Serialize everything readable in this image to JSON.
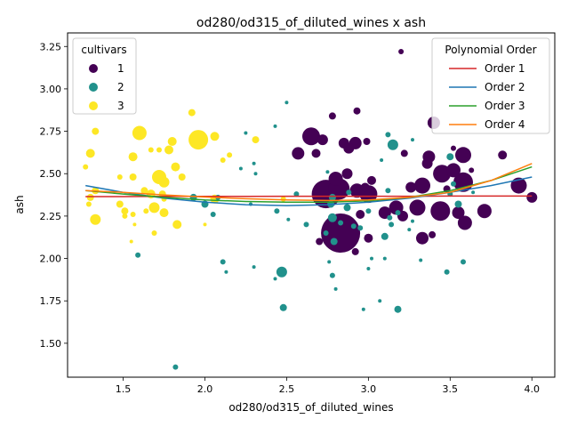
{
  "chart_data": {
    "type": "scatter",
    "title": "od280/od315_of_diluted_wines x ash",
    "xlabel": "od280/od315_of_diluted_wines",
    "ylabel": "ash",
    "xlim": [
      1.16,
      4.14
    ],
    "ylim": [
      1.3,
      3.33
    ],
    "xticks": [
      "1.5",
      "2.0",
      "2.5",
      "3.0",
      "3.5",
      "4.0"
    ],
    "yticks": [
      "1.50",
      "1.75",
      "2.00",
      "2.25",
      "2.50",
      "2.75",
      "3.00",
      "3.25"
    ],
    "grid": false,
    "legend_cultivars": {
      "title": "cultivars",
      "placement": "top-left",
      "entries": [
        {
          "label": "1",
          "color": "#440154"
        },
        {
          "label": "2",
          "color": "#21918c"
        },
        {
          "label": "3",
          "color": "#fde725"
        }
      ]
    },
    "legend_poly": {
      "title": "Polynomial Order",
      "placement": "top-right",
      "entries": [
        {
          "label": "Order 1",
          "color": "#d62728"
        },
        {
          "label": "Order 2",
          "color": "#1f77b4"
        },
        {
          "label": "Order 3",
          "color": "#2ca02c"
        },
        {
          "label": "Order 4",
          "color": "#ff7f0e"
        }
      ]
    },
    "series": [
      {
        "name": "1",
        "color": "#440154",
        "points": [
          [
            3.2,
            3.22,
            3
          ],
          [
            2.93,
            2.87,
            4
          ],
          [
            2.78,
            2.84,
            4
          ],
          [
            3.4,
            2.8,
            7
          ],
          [
            2.65,
            2.72,
            10
          ],
          [
            2.72,
            2.7,
            6
          ],
          [
            2.85,
            2.68,
            6
          ],
          [
            2.92,
            2.68,
            7
          ],
          [
            2.99,
            2.69,
            4
          ],
          [
            2.88,
            2.65,
            6
          ],
          [
            2.57,
            2.62,
            7
          ],
          [
            3.22,
            2.62,
            4
          ],
          [
            3.37,
            2.6,
            7
          ],
          [
            3.58,
            2.61,
            9
          ],
          [
            3.82,
            2.61,
            5
          ],
          [
            3.36,
            2.56,
            6
          ],
          [
            3.52,
            2.65,
            3
          ],
          [
            3.45,
            2.5,
            10
          ],
          [
            3.52,
            2.52,
            8
          ],
          [
            3.58,
            2.45,
            11
          ],
          [
            3.63,
            2.52,
            3
          ],
          [
            2.8,
            2.47,
            8
          ],
          [
            2.87,
            2.5,
            6
          ],
          [
            2.98,
            2.42,
            5
          ],
          [
            3.02,
            2.46,
            5
          ],
          [
            3.26,
            2.42,
            6
          ],
          [
            3.33,
            2.43,
            9
          ],
          [
            3.48,
            2.41,
            4
          ],
          [
            3.92,
            2.43,
            9
          ],
          [
            2.74,
            2.38,
            16
          ],
          [
            2.82,
            2.41,
            12
          ],
          [
            2.93,
            2.4,
            8
          ],
          [
            3.0,
            2.38,
            10
          ],
          [
            3.1,
            2.27,
            7
          ],
          [
            3.17,
            2.3,
            8
          ],
          [
            3.21,
            2.25,
            6
          ],
          [
            3.3,
            2.3,
            9
          ],
          [
            3.44,
            2.28,
            11
          ],
          [
            3.55,
            2.27,
            7
          ],
          [
            3.71,
            2.28,
            8
          ],
          [
            4.0,
            2.36,
            6
          ],
          [
            2.83,
            2.15,
            22
          ],
          [
            2.95,
            2.26,
            5
          ],
          [
            3.0,
            2.12,
            5
          ],
          [
            3.33,
            2.12,
            7
          ],
          [
            3.39,
            2.14,
            4
          ],
          [
            3.59,
            2.21,
            8
          ],
          [
            2.7,
            2.1,
            4
          ],
          [
            2.92,
            2.04,
            4
          ],
          [
            2.68,
            2.62,
            5
          ]
        ]
      },
      {
        "name": "2",
        "color": "#21918c",
        "points": [
          [
            2.5,
            2.92,
            2
          ],
          [
            2.25,
            2.74,
            2
          ],
          [
            2.43,
            2.78,
            2
          ],
          [
            3.12,
            2.73,
            3
          ],
          [
            3.15,
            2.67,
            6
          ],
          [
            3.27,
            2.7,
            2
          ],
          [
            2.3,
            2.56,
            2
          ],
          [
            2.22,
            2.53,
            2
          ],
          [
            2.75,
            2.51,
            2
          ],
          [
            3.08,
            2.58,
            2
          ],
          [
            3.5,
            2.6,
            4
          ],
          [
            3.64,
            2.39,
            2
          ],
          [
            2.31,
            2.5,
            2
          ],
          [
            1.93,
            2.36,
            4
          ],
          [
            2.08,
            2.36,
            3
          ],
          [
            2.28,
            2.32,
            2
          ],
          [
            2.56,
            2.38,
            3
          ],
          [
            2.78,
            2.36,
            4
          ],
          [
            2.88,
            2.39,
            3
          ],
          [
            3.12,
            2.4,
            3
          ],
          [
            3.5,
            2.38,
            3
          ],
          [
            3.52,
            2.44,
            3
          ],
          [
            2.0,
            2.32,
            4
          ],
          [
            2.44,
            2.28,
            3
          ],
          [
            2.77,
            2.32,
            4
          ],
          [
            2.87,
            2.3,
            4
          ],
          [
            3.0,
            2.28,
            3
          ],
          [
            3.13,
            2.24,
            3
          ],
          [
            3.18,
            2.27,
            3
          ],
          [
            3.55,
            2.32,
            4
          ],
          [
            2.05,
            2.26,
            3
          ],
          [
            2.51,
            2.23,
            2
          ],
          [
            2.62,
            2.2,
            3
          ],
          [
            2.78,
            2.24,
            5
          ],
          [
            2.83,
            2.21,
            3
          ],
          [
            2.91,
            2.19,
            3
          ],
          [
            3.14,
            2.2,
            3
          ],
          [
            3.27,
            2.22,
            2
          ],
          [
            2.74,
            2.15,
            3
          ],
          [
            2.79,
            2.1,
            4
          ],
          [
            2.95,
            2.18,
            3
          ],
          [
            3.1,
            2.13,
            4
          ],
          [
            3.25,
            2.17,
            2
          ],
          [
            2.11,
            1.98,
            3
          ],
          [
            2.13,
            1.92,
            2
          ],
          [
            2.3,
            1.95,
            2
          ],
          [
            2.47,
            1.92,
            6
          ],
          [
            2.76,
            1.98,
            2
          ],
          [
            2.78,
            1.9,
            3
          ],
          [
            3.02,
            2.0,
            2
          ],
          [
            3.1,
            2.0,
            2
          ],
          [
            3.48,
            1.92,
            3
          ],
          [
            3.58,
            1.98,
            3
          ],
          [
            1.59,
            2.02,
            3
          ],
          [
            2.43,
            1.88,
            2
          ],
          [
            2.8,
            1.82,
            2
          ],
          [
            3.0,
            1.94,
            2
          ],
          [
            3.07,
            1.75,
            2
          ],
          [
            2.48,
            1.71,
            4
          ],
          [
            3.18,
            1.7,
            4
          ],
          [
            2.97,
            1.7,
            2
          ],
          [
            1.82,
            1.36,
            3
          ],
          [
            3.32,
            1.99,
            2
          ]
        ]
      },
      {
        "name": "3",
        "color": "#fde725",
        "points": [
          [
            1.92,
            2.86,
            4
          ],
          [
            1.33,
            2.75,
            4
          ],
          [
            1.6,
            2.74,
            8
          ],
          [
            1.8,
            2.69,
            5
          ],
          [
            1.96,
            2.7,
            11
          ],
          [
            2.06,
            2.72,
            5
          ],
          [
            1.67,
            2.64,
            3
          ],
          [
            1.72,
            2.64,
            3
          ],
          [
            1.78,
            2.64,
            5
          ],
          [
            2.15,
            2.61,
            3
          ],
          [
            2.31,
            2.7,
            4
          ],
          [
            1.3,
            2.62,
            5
          ],
          [
            1.56,
            2.6,
            5
          ],
          [
            1.27,
            2.54,
            3
          ],
          [
            1.82,
            2.54,
            5
          ],
          [
            2.11,
            2.58,
            3
          ],
          [
            1.48,
            2.48,
            3
          ],
          [
            1.56,
            2.48,
            4
          ],
          [
            1.72,
            2.48,
            8
          ],
          [
            1.75,
            2.45,
            6
          ],
          [
            1.86,
            2.48,
            4
          ],
          [
            1.3,
            2.36,
            4
          ],
          [
            1.63,
            2.4,
            4
          ],
          [
            1.67,
            2.38,
            5
          ],
          [
            1.74,
            2.38,
            4
          ],
          [
            1.75,
            2.35,
            3
          ],
          [
            2.06,
            2.35,
            5
          ],
          [
            2.48,
            2.35,
            3
          ],
          [
            1.29,
            2.32,
            3
          ],
          [
            1.48,
            2.32,
            4
          ],
          [
            1.51,
            2.28,
            4
          ],
          [
            1.69,
            2.3,
            6
          ],
          [
            1.75,
            2.27,
            5
          ],
          [
            1.33,
            2.23,
            6
          ],
          [
            1.51,
            2.25,
            3
          ],
          [
            1.56,
            2.26,
            3
          ],
          [
            1.64,
            2.28,
            3
          ],
          [
            1.83,
            2.2,
            5
          ],
          [
            2.0,
            2.2,
            2
          ],
          [
            1.57,
            2.2,
            2
          ],
          [
            1.69,
            2.15,
            3
          ],
          [
            1.55,
            2.1,
            2
          ],
          [
            1.33,
            2.4,
            4
          ]
        ]
      }
    ],
    "fits": [
      {
        "name": "Order 1",
        "color": "#d62728",
        "x": [
          1.27,
          1.5,
          1.75,
          2.0,
          2.25,
          2.5,
          2.75,
          3.0,
          3.25,
          3.5,
          3.75,
          4.0
        ],
        "y": [
          2.365,
          2.365,
          2.366,
          2.366,
          2.366,
          2.367,
          2.367,
          2.367,
          2.367,
          2.368,
          2.368,
          2.368
        ]
      },
      {
        "name": "Order 2",
        "color": "#1f77b4",
        "x": [
          1.27,
          1.5,
          1.75,
          2.0,
          2.25,
          2.5,
          2.75,
          3.0,
          3.25,
          3.5,
          3.75,
          4.0
        ],
        "y": [
          2.43,
          2.39,
          2.356,
          2.332,
          2.317,
          2.312,
          2.317,
          2.332,
          2.356,
          2.39,
          2.43,
          2.48
        ]
      },
      {
        "name": "Order 3",
        "color": "#2ca02c",
        "x": [
          1.27,
          1.5,
          1.75,
          2.0,
          2.25,
          2.5,
          2.75,
          3.0,
          3.25,
          3.5,
          3.75,
          4.0
        ],
        "y": [
          2.4,
          2.38,
          2.36,
          2.345,
          2.336,
          2.332,
          2.332,
          2.34,
          2.36,
          2.4,
          2.46,
          2.54
        ]
      },
      {
        "name": "Order 4",
        "color": "#ff7f0e",
        "x": [
          1.27,
          1.5,
          1.75,
          2.0,
          2.25,
          2.5,
          2.75,
          3.0,
          3.25,
          3.5,
          3.75,
          4.0
        ],
        "y": [
          2.4,
          2.39,
          2.375,
          2.362,
          2.352,
          2.345,
          2.342,
          2.345,
          2.36,
          2.39,
          2.46,
          2.56
        ]
      }
    ]
  }
}
